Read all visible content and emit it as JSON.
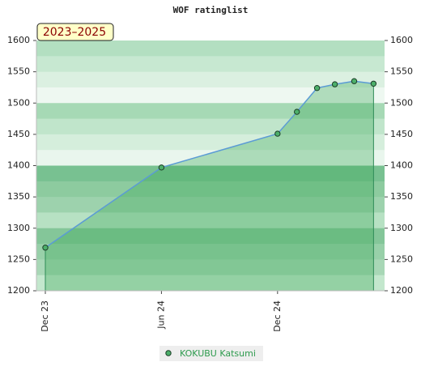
{
  "chart_data": {
    "type": "area",
    "title": "WOF ratinglist",
    "annotation": "2023–2025",
    "x": [
      0,
      6,
      12,
      13,
      14.04,
      14.96,
      15.96,
      16.96
    ],
    "xlim": [
      -0.46,
      17.53
    ],
    "xticks": [
      {
        "value": 0,
        "label": "Dec 23"
      },
      {
        "value": 6,
        "label": "Jun 24"
      },
      {
        "value": 12,
        "label": "Dec 24"
      }
    ],
    "series": [
      {
        "name": "KOKUBU Katsumi",
        "color": "#5b9bd5",
        "values": [
          1269,
          1397,
          1451,
          1486,
          1524,
          1530,
          1535,
          1531
        ]
      }
    ],
    "ylim": [
      1200,
      1600
    ],
    "yticks": [
      1200,
      1250,
      1300,
      1350,
      1400,
      1450,
      1500,
      1550,
      1600
    ],
    "y2lim": [
      1200,
      1600
    ],
    "y2ticks": [
      1200,
      1250,
      1300,
      1350,
      1400,
      1450,
      1500,
      1550,
      1600
    ]
  }
}
